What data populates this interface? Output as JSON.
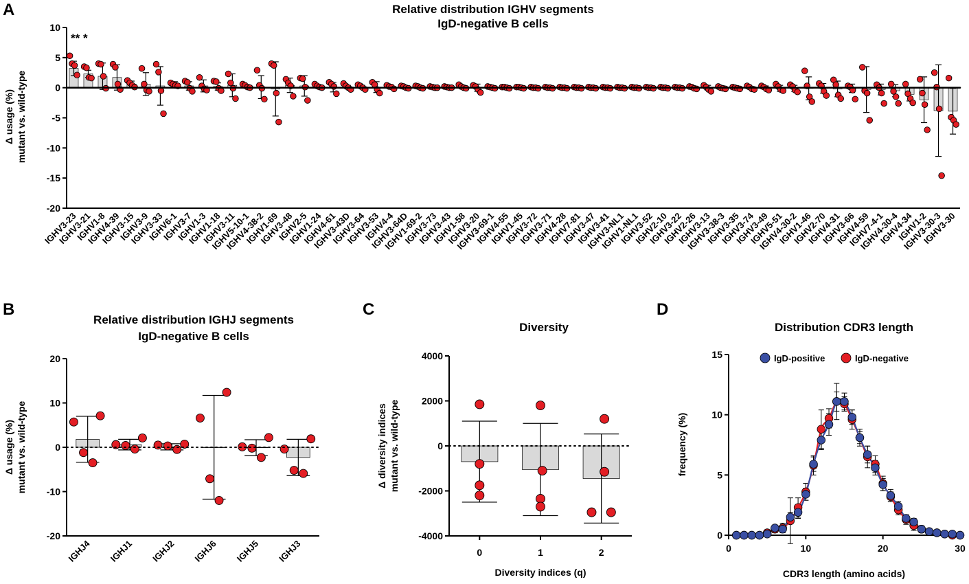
{
  "panels": {
    "A": {
      "letter": "A"
    },
    "B": {
      "letter": "B"
    },
    "C": {
      "letter": "C"
    },
    "D": {
      "letter": "D"
    }
  },
  "chart_data": [
    {
      "id": "A",
      "type": "bar",
      "title": "Relative distribution IGHV segments",
      "subtitle": "IgD-negative B cells",
      "ylabel_line1": "Δ usage (%)",
      "ylabel_line2": "mutant vs. wild-type",
      "ylim": [
        -20,
        10
      ],
      "yticks": [
        10,
        5,
        0,
        -5,
        -10,
        -15,
        -20
      ],
      "ytick_labels": [
        "10",
        "5",
        "0",
        "-5",
        "-10",
        "-15",
        "-20"
      ],
      "significance": "** *",
      "categories": [
        "IGHV3-23",
        "IGHV3-21",
        "IGHV1-8",
        "IGHV4-39",
        "IGHV3-15",
        "IGHV3-9",
        "IGHV3-33",
        "IGHV6-1",
        "IGHV3-7",
        "IGHV1-3",
        "IGHV1-18",
        "IGHV3-11",
        "IGHV5-10-1",
        "IGHV4-38-2",
        "IGHV1-69",
        "IGHV3-48",
        "IGHV2-5",
        "IGHV1-24",
        "IGHV4-61",
        "IGHV3-43D",
        "IGHV3-64",
        "IGHV3-53",
        "IGHV4-4",
        "IGHV3-64D",
        "IGHV1-69-2",
        "IGHV3-73",
        "IGHV3-43",
        "IGHV1-58",
        "IGHV3-20",
        "IGHV3-69-1",
        "IGHV4-55",
        "IGHV1-45",
        "IGHV3-72",
        "IGHV3-71",
        "IGHV4-28",
        "IGHV7-81",
        "IGHV3-47",
        "IGHV3-41",
        "IGHV3-NL1",
        "IGHV1-NL1",
        "IGHV3-52",
        "IGHV2-10",
        "IGHV3-22",
        "IGHV2-26",
        "IGHV3-13",
        "IGHV3-38-3",
        "IGHV3-35",
        "IGHV3-74",
        "IGHV3-49",
        "IGHV5-51",
        "IGHV4-30-2",
        "IGHV1-46",
        "IGHV2-70",
        "IGHV4-31",
        "IGHV3-66",
        "IGHV4-59",
        "IGHV7-4-1",
        "IGHV4-30-4",
        "IGHV4-34",
        "IGHV1-2",
        "IGHV3-30-3",
        "IGHV3-30"
      ],
      "means": [
        3.2,
        2.3,
        1.9,
        1.7,
        0.6,
        0.6,
        0.3,
        0.5,
        0.3,
        0.3,
        0.2,
        0.4,
        0.2,
        0.1,
        -0.2,
        0.4,
        0.3,
        0.2,
        0.1,
        0.1,
        0.1,
        0.1,
        0.1,
        0.1,
        0.1,
        0.1,
        0.1,
        0.1,
        0,
        0,
        0,
        0,
        0,
        0,
        0,
        0,
        0,
        0,
        0,
        0,
        0,
        0,
        0,
        0,
        0,
        0,
        0,
        0,
        0,
        -0.1,
        -0.1,
        -0.1,
        -0.1,
        -0.2,
        -0.1,
        -0.3,
        -0.3,
        -0.5,
        -1.1,
        -2,
        -3.8,
        -3.9
      ],
      "errors": [
        1.2,
        0.6,
        2.2,
        2.1,
        0.5,
        1.9,
        3.2,
        0.5,
        0.7,
        1,
        0.6,
        1.9,
        0.3,
        1.9,
        4.5,
        1.2,
        1.7,
        0.2,
        0.8,
        0.3,
        0.3,
        0.9,
        0.2,
        0.2,
        0.2,
        0.1,
        0.1,
        0.3,
        0.6,
        0.1,
        0.1,
        0.1,
        0.1,
        0.1,
        0.1,
        0.1,
        0.1,
        0.1,
        0.1,
        0.1,
        0.1,
        0.1,
        0.1,
        0.2,
        0.4,
        0.1,
        0.1,
        0.2,
        0.3,
        0.5,
        0.5,
        1.9,
        0.8,
        1.3,
        0.7,
        3.8,
        0.9,
        1,
        1.1,
        3.8,
        7.6,
        3.8
      ],
      "points": [
        [
          5.3,
          4,
          3.7,
          2.1
        ],
        [
          3.5,
          3.3,
          1.7,
          1.6
        ],
        [
          4,
          3.9,
          1.9,
          -0.1
        ],
        [
          3.9,
          3.4,
          0.6,
          -0.3
        ],
        [
          1.2,
          0.8,
          0.4,
          0.1
        ],
        [
          3.2,
          0.6,
          -0.4,
          -0.6
        ],
        [
          3.9,
          2.6,
          -0.5,
          -4.3
        ],
        [
          0.8,
          0.6,
          0.4,
          0.3
        ],
        [
          1.1,
          0.9,
          -0.1,
          -0.6
        ],
        [
          1.7,
          0.3,
          -0.2,
          -0.4
        ],
        [
          1.1,
          1,
          -0.1,
          -0.5
        ],
        [
          2.3,
          0.8,
          -0.1,
          -1.8
        ],
        [
          0.6,
          0.4,
          0.1,
          0
        ],
        [
          2.9,
          0.4,
          -0.1,
          -1.9
        ],
        [
          4,
          3.7,
          -0.9,
          -5.7
        ],
        [
          1.4,
          0.8,
          0.3,
          -1.4
        ],
        [
          1.6,
          1.5,
          0.1,
          -2.1
        ],
        [
          0.6,
          0.3,
          0.1,
          0
        ],
        [
          0.9,
          0.6,
          0.2,
          -1
        ],
        [
          0.7,
          0.3,
          0,
          -0.3
        ],
        [
          0.5,
          0.3,
          0,
          -0.3
        ],
        [
          0.9,
          0.5,
          -0.3,
          -0.9
        ],
        [
          0.4,
          0.2,
          0.1,
          -0.2
        ],
        [
          0.3,
          0.2,
          0,
          -0.1
        ],
        [
          0.3,
          0.2,
          0,
          -0.1
        ],
        [
          0.2,
          0.1,
          0,
          0
        ],
        [
          0.2,
          0.1,
          0,
          0
        ],
        [
          0.5,
          0.2,
          0,
          -0.1
        ],
        [
          0.4,
          0.2,
          -0.3,
          -0.8
        ],
        [
          0.2,
          0.1,
          0,
          -0.1
        ],
        [
          0.1,
          0.1,
          0,
          -0.1
        ],
        [
          0.1,
          0.1,
          0,
          -0.1
        ],
        [
          0.1,
          0,
          0,
          -0.1
        ],
        [
          0.1,
          0,
          0,
          -0.1
        ],
        [
          0.1,
          0,
          0,
          -0.1
        ],
        [
          0.1,
          0,
          0,
          -0.1
        ],
        [
          0.1,
          0,
          0,
          -0.1
        ],
        [
          0.1,
          0,
          0,
          -0.1
        ],
        [
          0.1,
          0,
          0,
          -0.1
        ],
        [
          0.1,
          0,
          0,
          -0.1
        ],
        [
          0.1,
          0,
          0,
          -0.1
        ],
        [
          0.1,
          0,
          0,
          -0.1
        ],
        [
          0.1,
          0,
          0,
          -0.1
        ],
        [
          0.2,
          0.1,
          -0.1,
          -0.2
        ],
        [
          0.4,
          0.1,
          -0.3,
          -0.6
        ],
        [
          0.2,
          0,
          -0.1,
          -0.2
        ],
        [
          0.1,
          0,
          -0.1,
          -0.2
        ],
        [
          0.3,
          0.1,
          -0.2,
          -0.3
        ],
        [
          0.3,
          0.1,
          -0.2,
          -0.4
        ],
        [
          0.6,
          0.2,
          -0.3,
          -0.5
        ],
        [
          0.5,
          0.2,
          -0.4,
          -0.7
        ],
        [
          2.8,
          0.3,
          -1.5,
          -2.3
        ],
        [
          0.7,
          0.3,
          -0.6,
          -1.3
        ],
        [
          1.3,
          0.5,
          -1.2,
          -1.8
        ],
        [
          0.3,
          0.1,
          -0.4,
          -1.9
        ],
        [
          3.4,
          -0.5,
          -0.9,
          -5.4
        ],
        [
          0.5,
          0,
          -0.9,
          -2.6
        ],
        [
          0.6,
          -0.6,
          -1.5,
          -2.6
        ],
        [
          0.6,
          -1,
          -1.8,
          -2.5
        ],
        [
          1.4,
          -0.9,
          -2.8,
          -7
        ],
        [
          2.5,
          0.1,
          -3.5,
          -14.6
        ],
        [
          1.6,
          -4.9,
          -5.4,
          -6.1
        ]
      ]
    },
    {
      "id": "B",
      "type": "bar",
      "title": "Relative distribution IGHJ segments",
      "subtitle": "IgD-negative B cells",
      "ylabel_line1": "Δ usage (%)",
      "ylabel_line2": "mutant vs. wild-type",
      "ylim": [
        -20,
        20
      ],
      "yticks": [
        20,
        10,
        0,
        -10,
        -20
      ],
      "ytick_labels": [
        "20",
        "10",
        "0",
        "-10",
        "-20"
      ],
      "categories": [
        "IGHJ4",
        "IGHJ1",
        "IGHJ2",
        "IGHJ6",
        "IGHJ5",
        "IGHJ3"
      ],
      "means": [
        1.8,
        0.6,
        0.1,
        0,
        -0.1,
        -2.3
      ],
      "errors": [
        5.2,
        1.2,
        0.7,
        11.7,
        1.8,
        4.1
      ],
      "points": [
        [
          7.1,
          5.7,
          -1.2,
          -3.5
        ],
        [
          2.1,
          0.6,
          0.4,
          -0.4
        ],
        [
          0.7,
          0.5,
          0.3,
          -0.5
        ],
        [
          12.4,
          6.6,
          -7.1,
          -12
        ],
        [
          2.2,
          0.1,
          -0.2,
          -2.3
        ],
        [
          1.9,
          -0.4,
          -5.2,
          -5.9
        ]
      ]
    },
    {
      "id": "C",
      "type": "bar",
      "title": "Diversity",
      "ylabel_line1": "Δ diversity indices",
      "ylabel_line2": "mutant vs. wild-type",
      "xlabel": "Diversity indices (q)",
      "ylim": [
        -4000,
        4000
      ],
      "yticks": [
        4000,
        2000,
        0,
        -2000,
        -4000
      ],
      "ytick_labels": [
        "4000",
        "2000",
        "0",
        "-2000",
        "-4000"
      ],
      "categories": [
        "0",
        "1",
        "2"
      ],
      "means": [
        -700,
        -1050,
        -1450
      ],
      "errors": [
        1800,
        2050,
        1980
      ],
      "points": [
        [
          1850,
          -800,
          -1750,
          -2200
        ],
        [
          1800,
          -1100,
          -2350,
          -2700
        ],
        [
          1200,
          -1150,
          -2950,
          -2950
        ]
      ]
    },
    {
      "id": "D",
      "type": "line",
      "title": "Distribution CDR3 length",
      "ylabel": "frequency (%)",
      "xlabel": "CDR3 length (amino acids)",
      "xlim": [
        0,
        30
      ],
      "ylim": [
        0,
        15
      ],
      "xticks": [
        0,
        10,
        20,
        30
      ],
      "xtick_labels": [
        "0",
        "10",
        "20",
        "30"
      ],
      "yticks": [
        0,
        5,
        10,
        15
      ],
      "ytick_labels": [
        "0",
        "5",
        "10",
        "15"
      ],
      "legend": [
        "IgD-positive",
        "IgD-negative"
      ],
      "legend_position": "top",
      "x": [
        1,
        2,
        3,
        4,
        5,
        6,
        7,
        8,
        9,
        10,
        11,
        12,
        13,
        14,
        15,
        16,
        17,
        18,
        19,
        20,
        21,
        22,
        23,
        24,
        25,
        26,
        27,
        28,
        29,
        30
      ],
      "series": [
        {
          "name": "IgD-negative",
          "color": "#e31e24",
          "values": [
            0,
            0,
            0,
            0,
            0.2,
            0.5,
            0.6,
            1.2,
            2.3,
            3.6,
            5.8,
            8.8,
            9.7,
            11.1,
            10.9,
            9.6,
            8.1,
            6.5,
            5.9,
            4.3,
            3.2,
            2.1,
            1.3,
            0.8,
            0.5,
            0.3,
            0.2,
            0.1,
            0,
            0
          ],
          "errors": [
            0,
            0,
            0,
            0,
            0.2,
            0.3,
            0.4,
            1.9,
            0.8,
            0.7,
            0.8,
            1.6,
            0.8,
            1.5,
            0.6,
            0.8,
            0.5,
            0.9,
            0.7,
            0.6,
            0.4,
            0.4,
            0.4,
            0.4,
            0.3,
            0.2,
            0.2,
            0.1,
            0.05,
            0.05
          ]
        },
        {
          "name": "IgD-positive",
          "color": "#3a4fa3",
          "values": [
            0,
            0,
            0,
            0,
            0.1,
            0.6,
            0.5,
            1.5,
            1.9,
            3.4,
            5.9,
            7.9,
            9.2,
            11.1,
            11.1,
            9.8,
            8.1,
            6.7,
            5.6,
            4.2,
            3.3,
            2.4,
            1.4,
            1.1,
            0.5,
            0.3,
            0.2,
            0.1,
            0.1,
            0
          ],
          "errors": [
            0,
            0,
            0,
            0,
            0.1,
            0.2,
            0.2,
            0.4,
            0.5,
            0.5,
            0.6,
            0.8,
            0.9,
            0.8,
            0.7,
            0.6,
            0.7,
            0.7,
            0.6,
            0.5,
            0.5,
            0.4,
            0.3,
            0.3,
            0.2,
            0.1,
            0.1,
            0.1,
            0.05,
            0
          ]
        }
      ]
    }
  ]
}
